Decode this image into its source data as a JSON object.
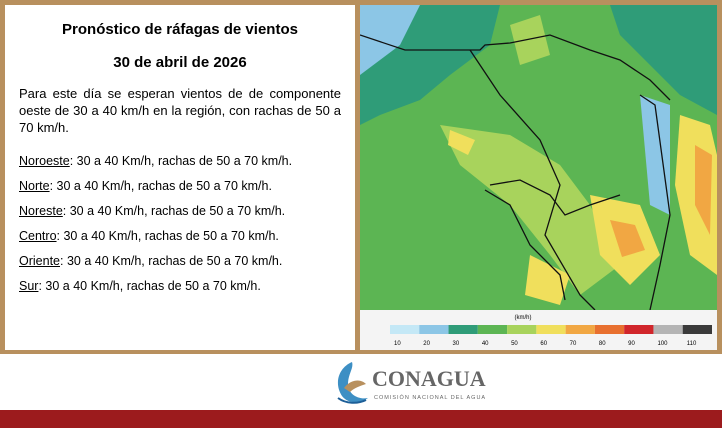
{
  "header": {
    "title": "Pronóstico de ráfagas de vientos",
    "date": "30 de abril de 2026"
  },
  "intro": "Para este día se esperan vientos de de componente oeste de 30 a 40 km/h en la región, con rachas de 50 a 70 km/h.",
  "regions": [
    {
      "name": "Noroeste",
      "detail": ":  30 a 40 Km/h, rachas de 50 a 70 km/h."
    },
    {
      "name": "Norte",
      "detail": ": 30 a 40 Km/h, rachas de 50 a 70 km/h."
    },
    {
      "name": "Noreste",
      "detail": ": 30 a 40 Km/h, rachas de 50 a 70 km/h."
    },
    {
      "name": "Centro",
      "detail": ":  30 a 40 Km/h, rachas de 50 a 70 km/h."
    },
    {
      "name": "Oriente",
      "detail": ":  30 a 40 Km/h, rachas de 50 a 70 km/h."
    },
    {
      "name": "Sur",
      "detail": ":  30 a 40 Km/h, rachas de 50 a 70 km/h."
    }
  ],
  "legend": {
    "unit": "(km/h)",
    "ticks": [
      10,
      20,
      30,
      40,
      50,
      60,
      70,
      80,
      90,
      100,
      110
    ],
    "colors": [
      "#c4e8f6",
      "#8cc6e6",
      "#2f9c78",
      "#5cb553",
      "#a8d35c",
      "#f0df5c",
      "#f1a743",
      "#e8702f",
      "#d1262b",
      "#b4b4b4",
      "#3a3a3a"
    ]
  },
  "logo": {
    "name": "CONAGUA",
    "subtitle": "COMISIÓN NACIONAL DEL AGUA"
  }
}
